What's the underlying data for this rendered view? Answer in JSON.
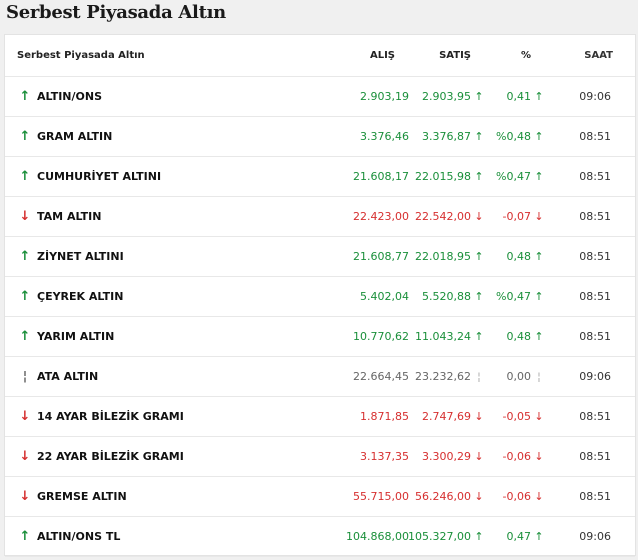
{
  "page_title": "Serbest Piyasada Altın",
  "table": {
    "headers": {
      "name": "Serbest Piyasada Altın",
      "buy": "ALIŞ",
      "sell": "SATIŞ",
      "pct": "%",
      "time": "SAAT"
    },
    "rows": [
      {
        "name": "ALTIN/ONS",
        "buy": "2.903,19",
        "sell": "2.903,95",
        "pct": "0,41",
        "time": "09:06",
        "trend": "up",
        "trend_icon": "↑",
        "arrow_icon": "↑"
      },
      {
        "name": "GRAM ALTIN",
        "buy": "3.376,46",
        "sell": "3.376,87",
        "pct": "%0,48",
        "time": "08:51",
        "trend": "up",
        "trend_icon": "↑",
        "arrow_icon": "↑"
      },
      {
        "name": "CUMHURİYET ALTINI",
        "buy": "21.608,17",
        "sell": "22.015,98",
        "pct": "%0,47",
        "time": "08:51",
        "trend": "up",
        "trend_icon": "↑",
        "arrow_icon": "↑"
      },
      {
        "name": "TAM ALTIN",
        "buy": "22.423,00",
        "sell": "22.542,00",
        "pct": "-0,07",
        "time": "08:51",
        "trend": "down",
        "trend_icon": "↓",
        "arrow_icon": "↓"
      },
      {
        "name": "ZİYNET ALTINI",
        "buy": "21.608,77",
        "sell": "22.018,95",
        "pct": "0,48",
        "time": "08:51",
        "trend": "up",
        "trend_icon": "↑",
        "arrow_icon": "↑"
      },
      {
        "name": "ÇEYREK ALTIN",
        "buy": "5.402,04",
        "sell": "5.520,88",
        "pct": "%0,47",
        "time": "08:51",
        "trend": "up",
        "trend_icon": "↑",
        "arrow_icon": "↑"
      },
      {
        "name": "YARIM ALTIN",
        "buy": "10.770,62",
        "sell": "11.043,24",
        "pct": "0,48",
        "time": "08:51",
        "trend": "up",
        "trend_icon": "↑",
        "arrow_icon": "↑"
      },
      {
        "name": "ATA ALTIN",
        "buy": "22.664,45",
        "sell": "23.232,62",
        "pct": "0,00",
        "time": "09:06",
        "trend": "flat",
        "trend_icon": "¦",
        "arrow_icon": "¦"
      },
      {
        "name": "14 AYAR BİLEZİK GRAMI",
        "buy": "1.871,85",
        "sell": "2.747,69",
        "pct": "-0,05",
        "time": "08:51",
        "trend": "down",
        "trend_icon": "↓",
        "arrow_icon": "↓"
      },
      {
        "name": "22 AYAR BİLEZİK GRAMI",
        "buy": "3.137,35",
        "sell": "3.300,29",
        "pct": "-0,06",
        "time": "08:51",
        "trend": "down",
        "trend_icon": "↓",
        "arrow_icon": "↓"
      },
      {
        "name": "GREMSE ALTIN",
        "buy": "55.715,00",
        "sell": "56.246,00",
        "pct": "-0,06",
        "time": "08:51",
        "trend": "down",
        "trend_icon": "↓",
        "arrow_icon": "↓"
      },
      {
        "name": "ALTIN/ONS TL",
        "buy": "104.868,00",
        "sell": "105.327,00",
        "pct": "0,47",
        "time": "09:06",
        "trend": "up",
        "trend_icon": "↑",
        "arrow_icon": "↑"
      }
    ]
  },
  "colors": {
    "up": "#1a8f3a",
    "down": "#d62f2f",
    "flat": "#666666"
  }
}
